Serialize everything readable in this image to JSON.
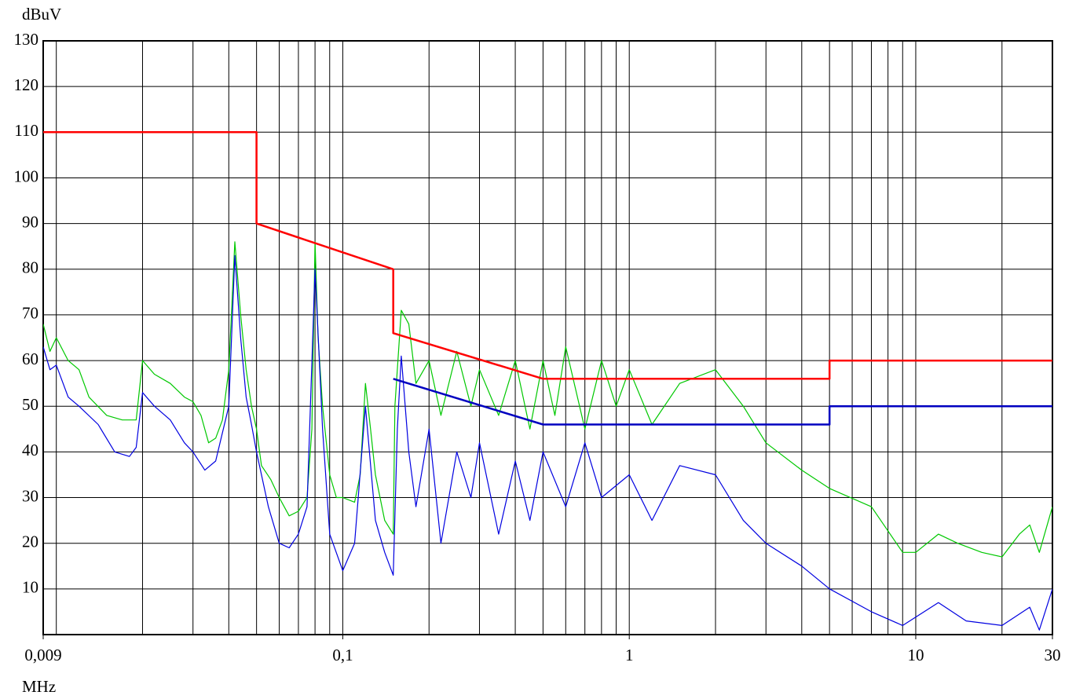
{
  "chart_data": {
    "type": "line",
    "y_label": "dBuV",
    "x_label": "MHz",
    "log_x": true,
    "grid": true,
    "xlim": [
      0.009,
      30
    ],
    "ylim": [
      0,
      130
    ],
    "xticks": [
      {
        "value": 0.009,
        "label": "0,009"
      },
      {
        "value": 0.1,
        "label": "0,1"
      },
      1,
      10,
      30
    ],
    "xgrid": [
      0.01,
      0.02,
      0.03,
      0.04,
      0.05,
      0.06,
      0.07,
      0.08,
      0.09,
      0.1,
      0.2,
      0.3,
      0.4,
      0.5,
      0.6,
      0.7,
      0.8,
      0.9,
      1,
      2,
      3,
      4,
      5,
      6,
      7,
      8,
      9,
      10,
      20
    ],
    "yticks": [
      10,
      20,
      30,
      40,
      50,
      60,
      70,
      80,
      90,
      100,
      110,
      120,
      130
    ],
    "series": [
      {
        "color": "#00c800",
        "width": 1.2,
        "x": [
          0.009,
          0.0095,
          0.01,
          0.011,
          0.012,
          0.013,
          0.015,
          0.017,
          0.019,
          0.02,
          0.022,
          0.025,
          0.028,
          0.03,
          0.032,
          0.034,
          0.036,
          0.038,
          0.04,
          0.042,
          0.044,
          0.046,
          0.048,
          0.05,
          0.052,
          0.056,
          0.06,
          0.065,
          0.07,
          0.075,
          0.078,
          0.08,
          0.082,
          0.085,
          0.09,
          0.095,
          0.1,
          0.11,
          0.115,
          0.12,
          0.125,
          0.13,
          0.14,
          0.15,
          0.152,
          0.16,
          0.17,
          0.18,
          0.2,
          0.22,
          0.25,
          0.28,
          0.3,
          0.35,
          0.4,
          0.45,
          0.5,
          0.55,
          0.6,
          0.7,
          0.8,
          0.9,
          1,
          1.2,
          1.5,
          2,
          2.5,
          3,
          4,
          5,
          7,
          9,
          10,
          12,
          14,
          17,
          20,
          23,
          25,
          27,
          30
        ],
        "values": [
          68,
          62,
          65,
          60,
          58,
          52,
          48,
          47,
          47,
          60,
          57,
          55,
          52,
          51,
          48,
          42,
          43,
          47,
          58,
          86,
          70,
          58,
          50,
          45,
          37,
          34,
          30,
          26,
          27,
          30,
          45,
          86,
          65,
          50,
          35,
          30,
          30,
          29,
          35,
          55,
          45,
          35,
          25,
          22,
          50,
          71,
          68,
          55,
          60,
          48,
          62,
          50,
          58,
          48,
          60,
          45,
          60,
          48,
          63,
          45,
          60,
          50,
          58,
          46,
          55,
          58,
          50,
          42,
          36,
          32,
          28,
          18,
          18,
          22,
          20,
          18,
          17,
          22,
          24,
          18,
          28
        ]
      },
      {
        "color": "#0000e0",
        "width": 1.2,
        "x": [
          0.009,
          0.0095,
          0.01,
          0.011,
          0.012,
          0.014,
          0.016,
          0.018,
          0.019,
          0.02,
          0.022,
          0.025,
          0.028,
          0.03,
          0.033,
          0.036,
          0.04,
          0.042,
          0.044,
          0.046,
          0.048,
          0.05,
          0.055,
          0.06,
          0.065,
          0.07,
          0.075,
          0.08,
          0.085,
          0.09,
          0.1,
          0.11,
          0.12,
          0.13,
          0.14,
          0.15,
          0.155,
          0.16,
          0.17,
          0.18,
          0.2,
          0.22,
          0.25,
          0.28,
          0.3,
          0.35,
          0.4,
          0.45,
          0.5,
          0.6,
          0.7,
          0.8,
          1,
          1.2,
          1.5,
          2,
          2.5,
          3,
          4,
          5,
          7,
          9,
          12,
          15,
          20,
          25,
          27,
          30
        ],
        "values": [
          63,
          58,
          59,
          52,
          50,
          46,
          40,
          39,
          41,
          53,
          50,
          47,
          42,
          40,
          36,
          38,
          50,
          83,
          65,
          52,
          46,
          40,
          28,
          20,
          19,
          22,
          28,
          80,
          45,
          22,
          14,
          20,
          50,
          25,
          18,
          13,
          45,
          61,
          40,
          28,
          45,
          20,
          40,
          30,
          42,
          22,
          38,
          25,
          40,
          28,
          42,
          30,
          35,
          25,
          37,
          35,
          25,
          20,
          15,
          10,
          5,
          2,
          7,
          3,
          2,
          6,
          1,
          10
        ]
      },
      {
        "color": "#ff0000",
        "width": 2.5,
        "x": [
          0.009,
          0.05,
          0.05,
          0.15,
          0.15,
          0.5,
          5,
          5,
          30
        ],
        "values": [
          110,
          110,
          90,
          80,
          66,
          56,
          56,
          60,
          60
        ]
      },
      {
        "color": "#0000c0",
        "width": 2.5,
        "x": [
          0.15,
          0.5,
          5,
          5,
          30
        ],
        "values": [
          56,
          46,
          46,
          50,
          50
        ]
      }
    ]
  }
}
